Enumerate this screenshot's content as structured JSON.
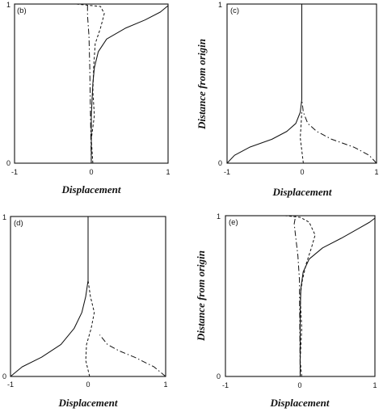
{
  "chart_data": [
    {
      "type": "line",
      "panel_label": "(b)",
      "xlabel": "Displacement",
      "ylabel": "",
      "xlim": [
        -1,
        1
      ],
      "ylim": [
        0,
        1
      ],
      "x_ticks": [
        "-1",
        "0",
        "1"
      ],
      "y_ticks": [
        "0",
        "1"
      ],
      "series": [
        {
          "style": "solid",
          "points": [
            [
              0.0,
              0.0
            ],
            [
              0.0,
              0.3
            ],
            [
              0.02,
              0.5
            ],
            [
              0.04,
              0.6
            ],
            [
              0.09,
              0.7
            ],
            [
              0.2,
              0.78
            ],
            [
              0.45,
              0.85
            ],
            [
              0.7,
              0.9
            ],
            [
              0.9,
              0.95
            ],
            [
              1.0,
              0.99
            ]
          ]
        },
        {
          "style": "dashed",
          "points": [
            [
              0.02,
              0.0
            ],
            [
              0.0,
              0.15
            ],
            [
              0.04,
              0.3
            ],
            [
              0.02,
              0.45
            ],
            [
              0.03,
              0.6
            ],
            [
              0.05,
              0.75
            ],
            [
              0.12,
              0.85
            ],
            [
              0.17,
              0.94
            ],
            [
              0.12,
              0.985
            ],
            [
              -0.2,
              1.0
            ]
          ]
        },
        {
          "style": "dash-dot",
          "points": [
            [
              0.0,
              0.0
            ],
            [
              -0.01,
              0.3
            ],
            [
              -0.02,
              0.6
            ],
            [
              -0.03,
              0.8
            ],
            [
              -0.05,
              0.93
            ],
            [
              -0.05,
              1.0
            ]
          ]
        }
      ]
    },
    {
      "type": "line",
      "panel_label": "(c)",
      "xlabel": "Displacement",
      "ylabel": "Distance from origin",
      "xlim": [
        -1,
        1
      ],
      "ylim": [
        0,
        1
      ],
      "x_ticks": [
        "-1",
        "0",
        "1"
      ],
      "y_ticks": [
        "0",
        "1"
      ],
      "series": [
        {
          "style": "solid",
          "points": [
            [
              -1.0,
              0.0
            ],
            [
              -0.9,
              0.05
            ],
            [
              -0.7,
              0.1
            ],
            [
              -0.4,
              0.15
            ],
            [
              -0.2,
              0.2
            ],
            [
              -0.08,
              0.25
            ],
            [
              -0.02,
              0.32
            ],
            [
              0.0,
              0.4
            ],
            [
              0.0,
              1.0
            ]
          ]
        },
        {
          "style": "dash-dot",
          "points": [
            [
              1.0,
              0.0
            ],
            [
              0.9,
              0.05
            ],
            [
              0.7,
              0.1
            ],
            [
              0.4,
              0.15
            ],
            [
              0.2,
              0.2
            ],
            [
              0.08,
              0.25
            ],
            [
              0.02,
              0.32
            ],
            [
              0.0,
              0.4
            ]
          ]
        },
        {
          "style": "dashed",
          "points": [
            [
              0.02,
              0.0
            ],
            [
              0.0,
              0.08
            ],
            [
              -0.02,
              0.16
            ],
            [
              -0.01,
              0.24
            ],
            [
              0.0,
              0.32
            ]
          ]
        }
      ]
    },
    {
      "type": "line",
      "panel_label": "(d)",
      "xlabel": "Displacement",
      "ylabel": "",
      "xlim": [
        -1,
        1
      ],
      "ylim": [
        0,
        1
      ],
      "x_ticks": [
        "-1",
        "0",
        "1"
      ],
      "y_ticks": [
        "0",
        "1"
      ],
      "series": [
        {
          "style": "solid",
          "points": [
            [
              -1.0,
              0.0
            ],
            [
              -0.85,
              0.06
            ],
            [
              -0.6,
              0.12
            ],
            [
              -0.35,
              0.2
            ],
            [
              -0.18,
              0.3
            ],
            [
              -0.08,
              0.4
            ],
            [
              -0.03,
              0.5
            ],
            [
              0.0,
              0.6
            ],
            [
              0.0,
              1.0
            ]
          ]
        },
        {
          "style": "dash-dot",
          "points": [
            [
              1.0,
              0.0
            ],
            [
              0.85,
              0.06
            ],
            [
              0.6,
              0.12
            ],
            [
              0.4,
              0.16
            ],
            [
              0.25,
              0.2
            ],
            [
              0.15,
              0.26
            ]
          ]
        },
        {
          "style": "dashed",
          "points": [
            [
              0.02,
              0.0
            ],
            [
              -0.03,
              0.1
            ],
            [
              -0.02,
              0.2
            ],
            [
              0.04,
              0.3
            ],
            [
              0.08,
              0.4
            ],
            [
              0.03,
              0.5
            ],
            [
              0.0,
              0.6
            ]
          ]
        }
      ]
    },
    {
      "type": "line",
      "panel_label": "(e)",
      "xlabel": "Displacement",
      "ylabel": "Distance from origin",
      "xlim": [
        -1,
        1
      ],
      "ylim": [
        0,
        1
      ],
      "x_ticks": [
        "-1",
        "0",
        "1"
      ],
      "y_ticks": [
        "0",
        "1"
      ],
      "series": [
        {
          "style": "solid",
          "points": [
            [
              0.0,
              0.0
            ],
            [
              0.0,
              0.4
            ],
            [
              0.01,
              0.55
            ],
            [
              0.04,
              0.65
            ],
            [
              0.12,
              0.73
            ],
            [
              0.3,
              0.8
            ],
            [
              0.55,
              0.86
            ],
            [
              0.78,
              0.92
            ],
            [
              0.93,
              0.96
            ],
            [
              1.0,
              0.985
            ]
          ]
        },
        {
          "style": "dashed",
          "points": [
            [
              0.02,
              0.0
            ],
            [
              0.0,
              0.1
            ],
            [
              0.02,
              0.3
            ],
            [
              0.0,
              0.5
            ],
            [
              0.03,
              0.6
            ],
            [
              0.08,
              0.7
            ],
            [
              0.15,
              0.8
            ],
            [
              0.2,
              0.88
            ],
            [
              0.12,
              0.96
            ],
            [
              0.0,
              0.99
            ],
            [
              -0.2,
              1.0
            ]
          ]
        },
        {
          "style": "dash-dot",
          "points": [
            [
              0.0,
              0.0
            ],
            [
              -0.01,
              0.6
            ],
            [
              -0.03,
              0.75
            ],
            [
              -0.06,
              0.87
            ],
            [
              -0.08,
              0.95
            ],
            [
              -0.06,
              1.0
            ]
          ]
        }
      ]
    }
  ]
}
